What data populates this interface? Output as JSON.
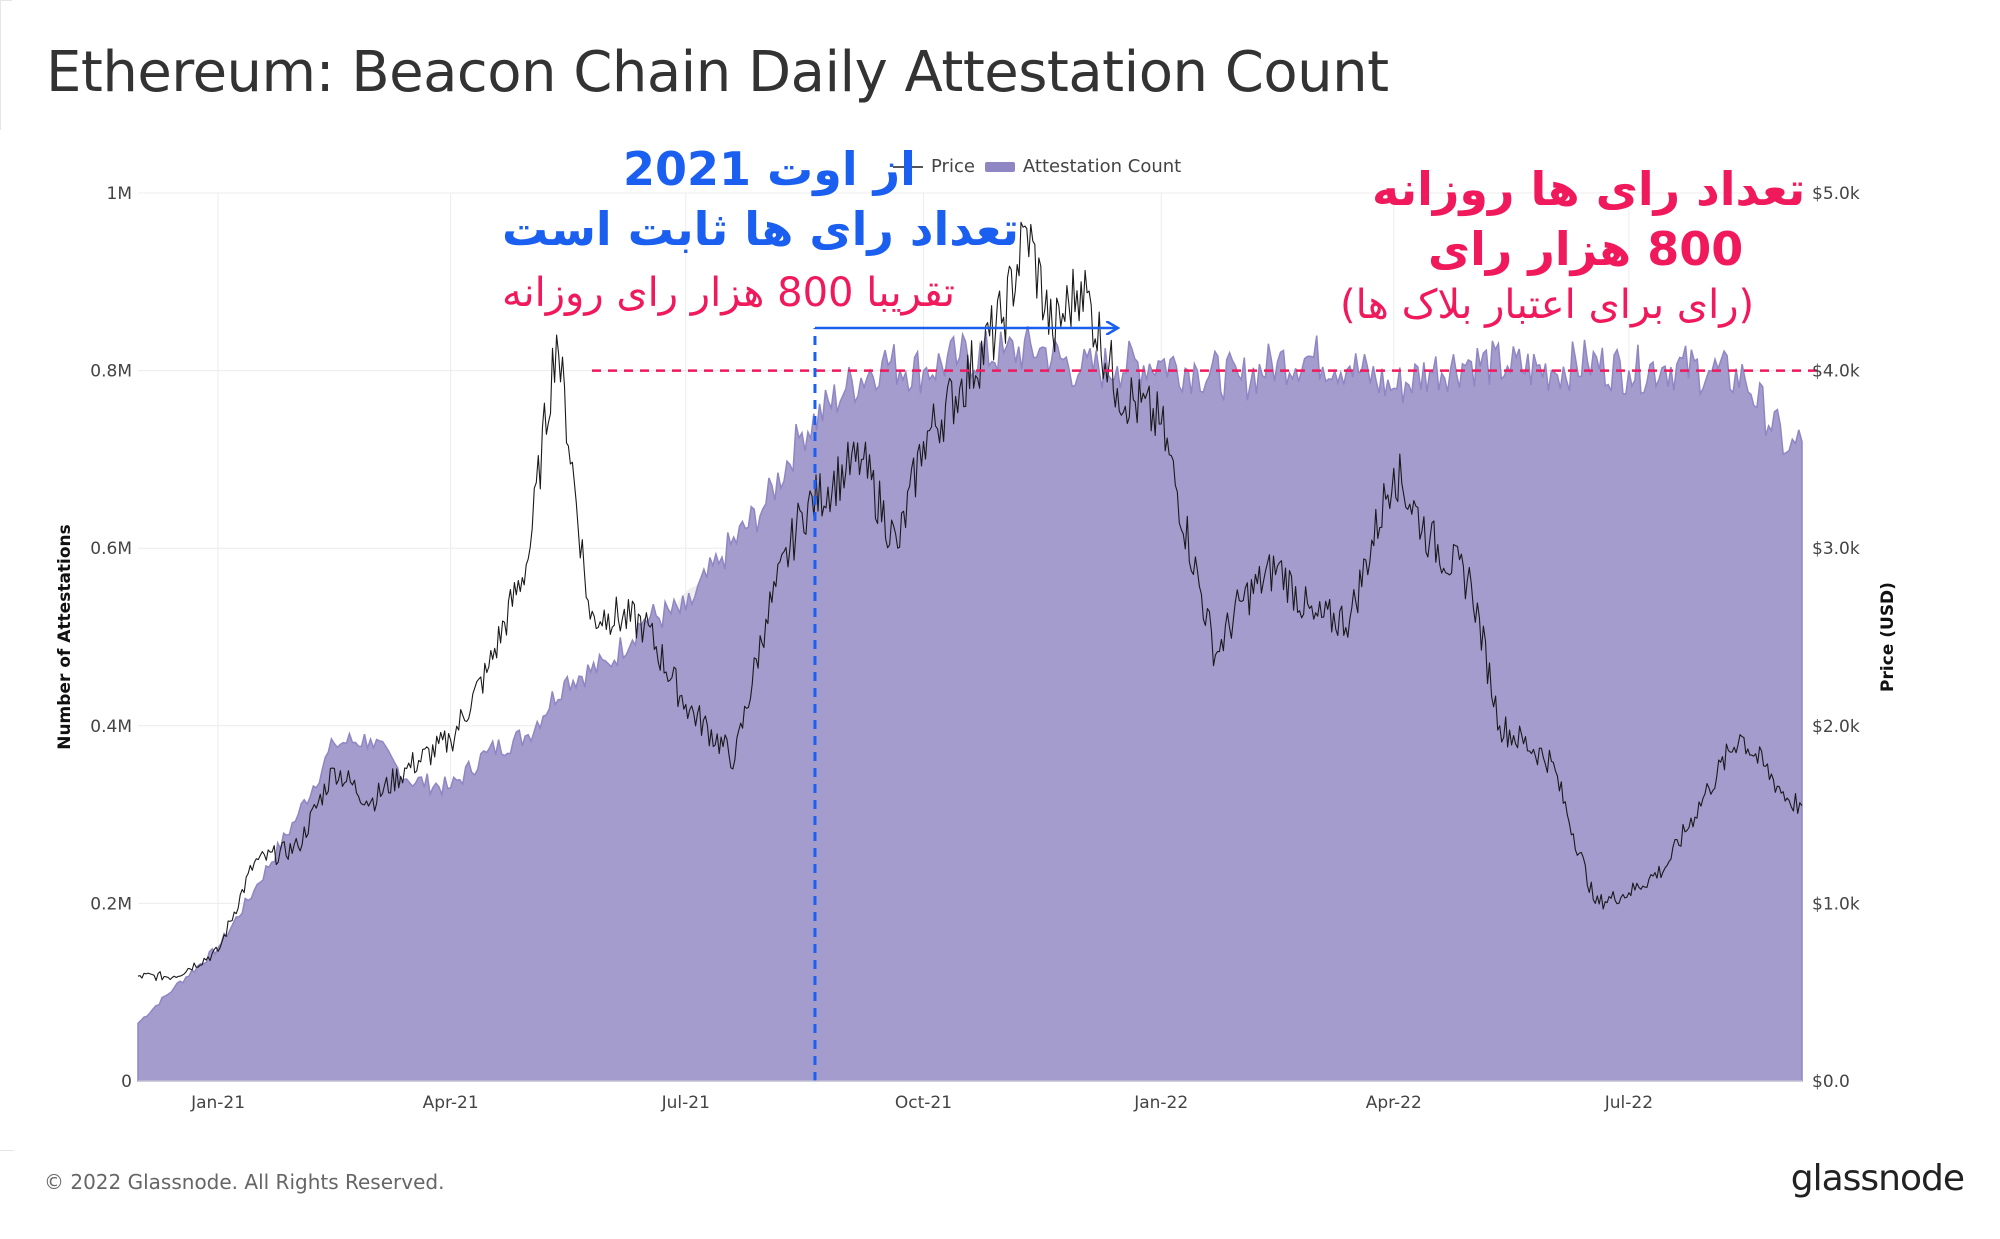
{
  "title": "Ethereum: Beacon Chain Daily Attestation Count",
  "legend": {
    "price_label": "Price",
    "attestation_label": "Attestation Count"
  },
  "annotations": {
    "blue_line1": "از اوت 2021",
    "blue_line2": "تعداد رای ها ثابت است",
    "pink_line1": "تقریبا 800 هزار رای روزانه",
    "right_line1": "تعداد رای ها روزانه",
    "right_line2": "800 هزار رای",
    "right_line3": "(رای برای اعتبار بلاک ها)"
  },
  "watermark": "glassnode",
  "footer": {
    "copyright": "© 2022 Glassnode. All Rights Reserved.",
    "brand": "glassnode"
  },
  "colors": {
    "area_fill": "#a39ccd",
    "area_stroke": "#8f86c4",
    "price_line": "#1a1a1a",
    "blue_annotation": "#1a5ff0",
    "pink_annotation": "#f0195c",
    "grid": "#ececec"
  },
  "chart_data": {
    "type": "area",
    "x_ticks": [
      "Jan-21",
      "Apr-21",
      "Jul-21",
      "Oct-21",
      "Jan-22",
      "Apr-22",
      "Jul-22"
    ],
    "y_left": {
      "label": "Number of Attestations",
      "ticks": [
        "0",
        "0.2M",
        "0.4M",
        "0.6M",
        "0.8M",
        "1M"
      ],
      "range": [
        0,
        1000000
      ]
    },
    "y_right": {
      "label": "Price (USD)",
      "ticks": [
        "$0.0",
        "$1.0k",
        "$2.0k",
        "$3.0k",
        "$4.0k",
        "$5.0k"
      ],
      "range": [
        0,
        5000
      ]
    },
    "grid": true,
    "legend_position": "top",
    "x_range": [
      "2020-12-01",
      "2022-09-06"
    ],
    "series": [
      {
        "name": "Attestation Count",
        "unit": "attestations",
        "x": [
          "2020-12-01",
          "2020-12-15",
          "2021-01-01",
          "2021-01-15",
          "2021-02-01",
          "2021-02-15",
          "2021-03-01",
          "2021-03-15",
          "2021-04-01",
          "2021-04-15",
          "2021-05-01",
          "2021-05-15",
          "2021-06-01",
          "2021-06-15",
          "2021-07-01",
          "2021-07-15",
          "2021-08-01",
          "2021-08-15",
          "2021-09-01",
          "2021-09-15",
          "2021-10-01",
          "2021-10-15",
          "2021-11-01",
          "2021-11-15",
          "2021-12-01",
          "2021-12-15",
          "2022-01-01",
          "2022-01-15",
          "2022-02-01",
          "2022-02-15",
          "2022-03-01",
          "2022-03-15",
          "2022-04-01",
          "2022-04-15",
          "2022-05-01",
          "2022-05-15",
          "2022-06-01",
          "2022-06-15",
          "2022-07-01",
          "2022-07-15",
          "2022-08-01",
          "2022-08-15",
          "2022-09-01",
          "2022-09-06"
        ],
        "values": [
          65000,
          105000,
          150000,
          215000,
          300000,
          380000,
          385000,
          340000,
          330000,
          370000,
          390000,
          450000,
          470000,
          520000,
          530000,
          590000,
          650000,
          730000,
          780000,
          810000,
          800000,
          815000,
          820000,
          825000,
          800000,
          805000,
          810000,
          800000,
          790000,
          810000,
          815000,
          805000,
          780000,
          800000,
          810000,
          805000,
          800000,
          810000,
          800000,
          805000,
          800000,
          790000,
          710000,
          720000
        ]
      },
      {
        "name": "Price",
        "unit": "USD",
        "x": [
          "2020-12-01",
          "2020-12-15",
          "2021-01-01",
          "2021-01-15",
          "2021-02-01",
          "2021-02-15",
          "2021-03-01",
          "2021-03-15",
          "2021-04-01",
          "2021-04-15",
          "2021-05-01",
          "2021-05-12",
          "2021-05-25",
          "2021-06-01",
          "2021-06-15",
          "2021-07-01",
          "2021-07-20",
          "2021-08-01",
          "2021-08-15",
          "2021-09-01",
          "2021-09-07",
          "2021-09-21",
          "2021-10-01",
          "2021-10-15",
          "2021-11-01",
          "2021-11-10",
          "2021-11-20",
          "2021-12-01",
          "2021-12-15",
          "2022-01-01",
          "2022-01-22",
          "2022-02-01",
          "2022-02-15",
          "2022-03-01",
          "2022-03-15",
          "2022-04-01",
          "2022-04-15",
          "2022-05-01",
          "2022-05-12",
          "2022-06-01",
          "2022-06-18",
          "2022-07-01",
          "2022-07-15",
          "2022-08-01",
          "2022-08-13",
          "2022-09-01",
          "2022-09-06"
        ],
        "values": [
          590,
          590,
          730,
          1230,
          1320,
          1760,
          1570,
          1760,
          1920,
          2300,
          2940,
          4200,
          2600,
          2630,
          2570,
          2120,
          1810,
          2600,
          3200,
          3440,
          3500,
          3000,
          3600,
          3900,
          4300,
          4800,
          4200,
          4500,
          3900,
          3700,
          2400,
          2700,
          2900,
          2600,
          2600,
          3450,
          3050,
          2800,
          2000,
          1800,
          1000,
          1060,
          1200,
          1650,
          1950,
          1580,
          1550
        ]
      }
    ],
    "reference_lines": [
      {
        "type": "horizontal",
        "value": 800000,
        "axis": "left"
      },
      {
        "type": "vertical",
        "date": "2021-08-20"
      }
    ]
  }
}
